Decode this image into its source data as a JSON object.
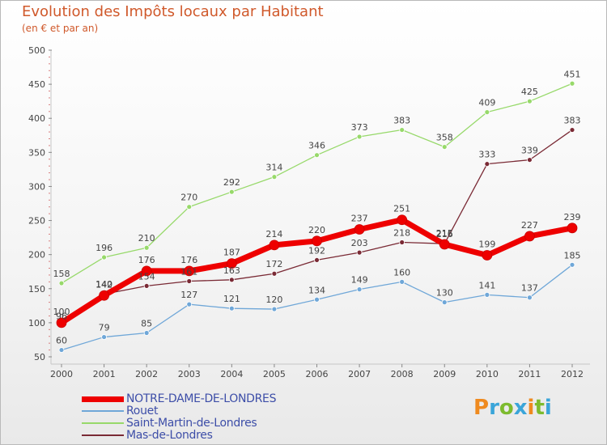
{
  "chart_data": {
    "type": "line",
    "title": "Evolution des Impôts locaux par Habitant",
    "subtitle": "(en € et par an)",
    "x": [
      "2000",
      "2001",
      "2002",
      "2003",
      "2004",
      "2005",
      "2006",
      "2007",
      "2008",
      "2009",
      "2010",
      "2011",
      "2012"
    ],
    "ylim": [
      50,
      500
    ],
    "yticks": [
      50,
      100,
      150,
      200,
      250,
      300,
      350,
      400,
      450,
      500
    ],
    "grid": false,
    "legend_position": "bottom-left",
    "series": [
      {
        "name": "NOTRE-DAME-DE-LONDRES",
        "color": "#ee0000",
        "values": [
          100,
          140,
          176,
          176,
          187,
          214,
          220,
          237,
          251,
          215,
          199,
          227,
          239
        ]
      },
      {
        "name": "Rouet",
        "color": "#6fa7d8",
        "values": [
          60,
          79,
          85,
          127,
          121,
          120,
          134,
          149,
          160,
          130,
          141,
          137,
          185
        ]
      },
      {
        "name": "Saint-Martin-de-Londres",
        "color": "#97d96a",
        "values": [
          158,
          196,
          210,
          270,
          292,
          314,
          346,
          373,
          383,
          358,
          409,
          425,
          451
        ]
      },
      {
        "name": "Mas-de-Londres",
        "color": "#7a2a35",
        "values": [
          96,
          142,
          154,
          161,
          163,
          172,
          192,
          203,
          218,
          216,
          333,
          339,
          383
        ]
      }
    ]
  },
  "logo": {
    "letters": [
      {
        "ch": "P",
        "color": "#ef8a1f"
      },
      {
        "ch": "r",
        "color": "#3aa5d9"
      },
      {
        "ch": "o",
        "color": "#7dbb2e"
      },
      {
        "ch": "x",
        "color": "#3aa5d9"
      },
      {
        "ch": "i",
        "color": "#ef8a1f"
      },
      {
        "ch": "t",
        "color": "#7dbb2e"
      },
      {
        "ch": "i",
        "color": "#3aa5d9"
      }
    ]
  }
}
